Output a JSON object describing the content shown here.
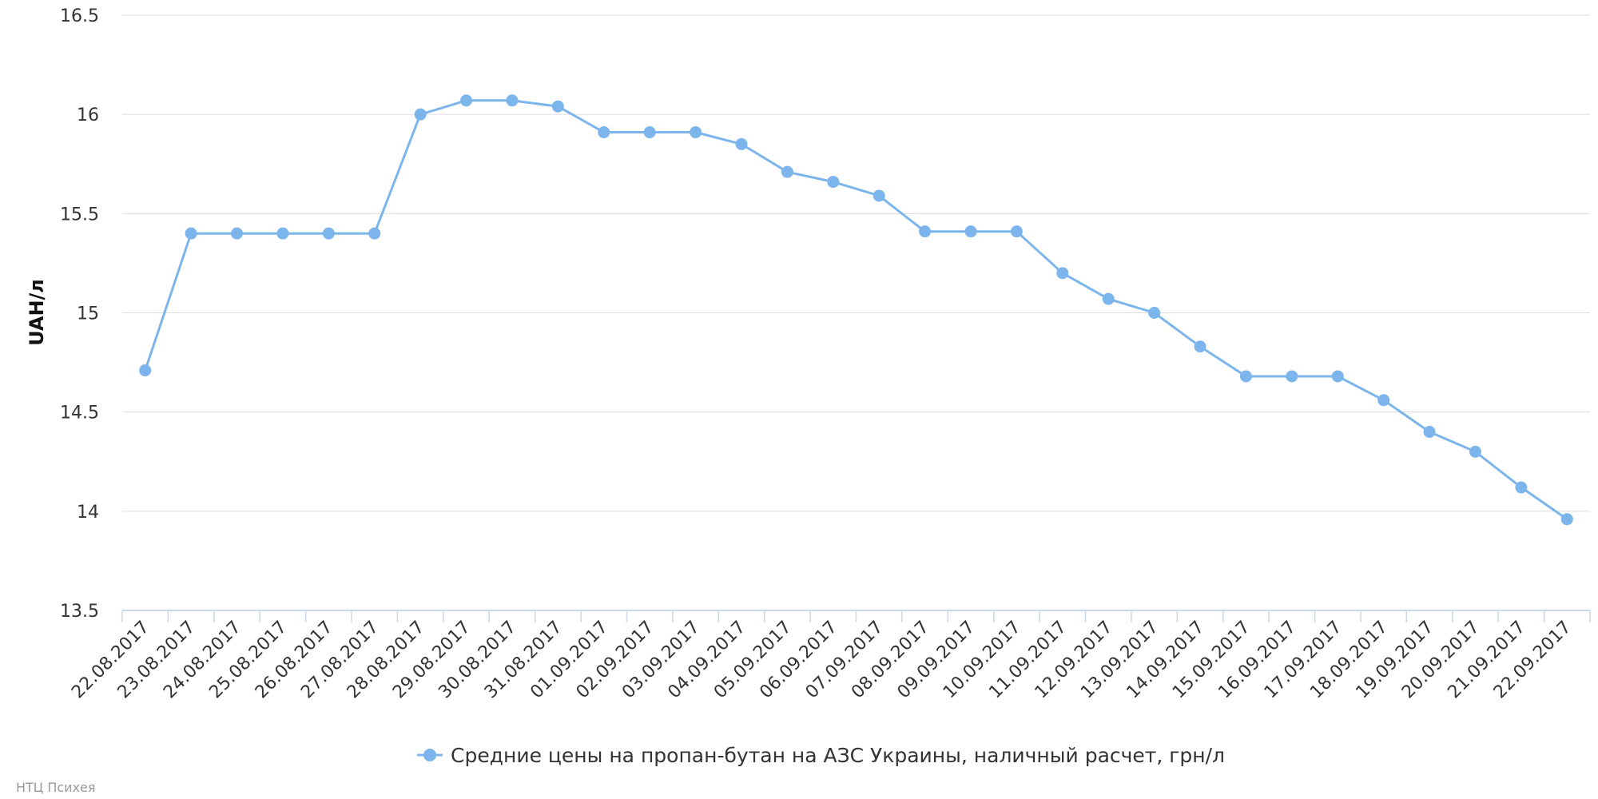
{
  "chart_data": {
    "type": "line",
    "title": "",
    "xlabel": "",
    "ylabel": "UAH/л",
    "ylim": [
      13.5,
      16.5
    ],
    "yticks": [
      "13.5",
      "14",
      "14.5",
      "15",
      "15.5",
      "16",
      "16.5"
    ],
    "grid": "horizontal",
    "legend_position": "bottom",
    "categories": [
      "22.08.2017",
      "23.08.2017",
      "24.08.2017",
      "25.08.2017",
      "26.08.2017",
      "27.08.2017",
      "28.08.2017",
      "29.08.2017",
      "30.08.2017",
      "31.08.2017",
      "01.09.2017",
      "02.09.2017",
      "03.09.2017",
      "04.09.2017",
      "05.09.2017",
      "06.09.2017",
      "07.09.2017",
      "08.09.2017",
      "09.09.2017",
      "10.09.2017",
      "11.09.2017",
      "12.09.2017",
      "13.09.2017",
      "14.09.2017",
      "15.09.2017",
      "16.09.2017",
      "17.09.2017",
      "18.09.2017",
      "19.09.2017",
      "20.09.2017",
      "21.09.2017",
      "22.09.2017"
    ],
    "series": [
      {
        "name": "Средние цены на пропан-бутан на АЗС Украины, наличный расчет, грн/л",
        "color": "#7cb5ec",
        "values": [
          14.71,
          15.4,
          15.4,
          15.4,
          15.4,
          15.4,
          16.0,
          16.07,
          16.07,
          16.04,
          15.91,
          15.91,
          15.91,
          15.85,
          15.71,
          15.66,
          15.59,
          15.41,
          15.41,
          15.41,
          15.2,
          15.07,
          15.0,
          14.83,
          14.68,
          14.68,
          14.68,
          14.56,
          14.4,
          14.3,
          14.12,
          13.96
        ]
      }
    ]
  },
  "credit": "НТЦ Психея"
}
